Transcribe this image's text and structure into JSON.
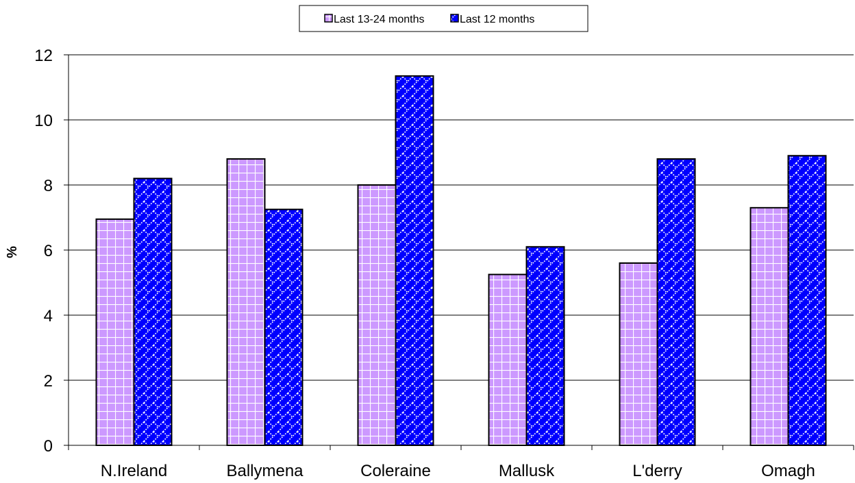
{
  "chart_data": {
    "type": "bar",
    "title": "",
    "xlabel": "",
    "ylabel": "%",
    "ylim": [
      0,
      12
    ],
    "yticks": [
      0,
      2,
      4,
      6,
      8,
      10,
      12
    ],
    "grid": true,
    "legend_position": "top-center",
    "categories": [
      "N.Ireland",
      "Ballymena",
      "Coleraine",
      "Mallusk",
      "L'derry",
      "Omagh"
    ],
    "series": [
      {
        "name": "Last 13-24 months",
        "values": [
          6.95,
          8.8,
          8.0,
          5.25,
          5.6,
          7.3
        ],
        "color": "#cc99ff",
        "pattern": "grid"
      },
      {
        "name": "Last 12 months",
        "values": [
          8.2,
          7.25,
          11.35,
          6.1,
          8.8,
          8.9
        ],
        "color": "#0000ff",
        "pattern": "dotted-diagonal"
      }
    ]
  }
}
